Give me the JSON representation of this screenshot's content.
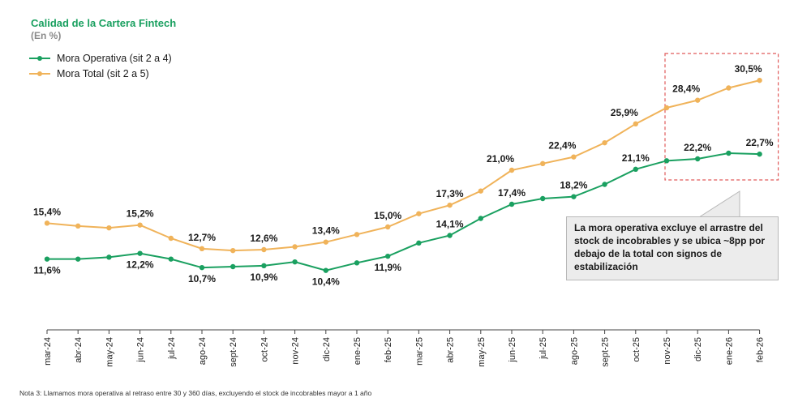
{
  "header": {
    "title": "Calidad de la Cartera Fintech",
    "subtitle": "(En %)"
  },
  "callout": {
    "text": "La mora operativa excluye el  arrastre del stock de incobrables y se ubica ~8pp por debajo de la total con signos de estabilización"
  },
  "footnote": "Nota 3: Llamamos mora operativa al retraso entre 30 y 360 días, excluyendo el stock de incobrables mayor a 1 año",
  "colors": {
    "green": "#1aa060",
    "orange": "#f0b35a",
    "highlight_border": "#e05a5a",
    "axis": "#444444"
  },
  "chart_data": {
    "type": "line",
    "title": "Calidad de la Cartera Fintech",
    "subtitle": "(En %)",
    "categories": [
      "mar-24",
      "abr-24",
      "may-24",
      "jun-24",
      "jul-24",
      "ago-24",
      "sept-24",
      "oct-24",
      "nov-24",
      "dic-24",
      "ene-25",
      "feb-25",
      "mar-25",
      "abr-25",
      "may-25",
      "jun-25",
      "jul-25",
      "ago-25",
      "sept-25",
      "oct-25",
      "nov-25",
      "dic-25",
      "ene-26",
      "feb-26"
    ],
    "ylim": [
      0,
      35
    ],
    "grid": false,
    "legend_position": "top-left",
    "series": [
      {
        "name": "Mora Operativa (sit 2 a 4)",
        "color": "#1aa060",
        "values": [
          11.6,
          11.6,
          11.8,
          12.2,
          11.6,
          10.7,
          10.8,
          10.9,
          11.3,
          10.4,
          11.2,
          11.9,
          13.3,
          14.1,
          15.9,
          17.4,
          18.0,
          18.2,
          19.5,
          21.1,
          22.0,
          22.2,
          22.8,
          22.7
        ],
        "labels": [
          "11,6%",
          null,
          null,
          "12,2%",
          null,
          "10,7%",
          null,
          "10,9%",
          null,
          "10,4%",
          null,
          "11,9%",
          null,
          "14,1%",
          null,
          "17,4%",
          null,
          "18,2%",
          null,
          "21,1%",
          null,
          "22,2%",
          null,
          "22,7%"
        ]
      },
      {
        "name": "Mora Total (sit 2 a 5)",
        "color": "#f0b35a",
        "values": [
          15.4,
          15.1,
          14.9,
          15.2,
          13.8,
          12.7,
          12.5,
          12.6,
          12.9,
          13.4,
          14.2,
          15.0,
          16.4,
          17.3,
          18.8,
          21.0,
          21.7,
          22.4,
          23.9,
          25.9,
          27.6,
          28.4,
          29.7,
          30.5
        ],
        "labels": [
          "15,4%",
          null,
          null,
          "15,2%",
          null,
          "12,7%",
          null,
          "12,6%",
          null,
          "13,4%",
          null,
          "15,0%",
          null,
          "17,3%",
          null,
          "21,0%",
          null,
          "22,4%",
          null,
          "25,9%",
          null,
          "28,4%",
          null,
          "30,5%"
        ]
      }
    ],
    "highlight_range": [
      "nov-25",
      "feb-26"
    ]
  }
}
